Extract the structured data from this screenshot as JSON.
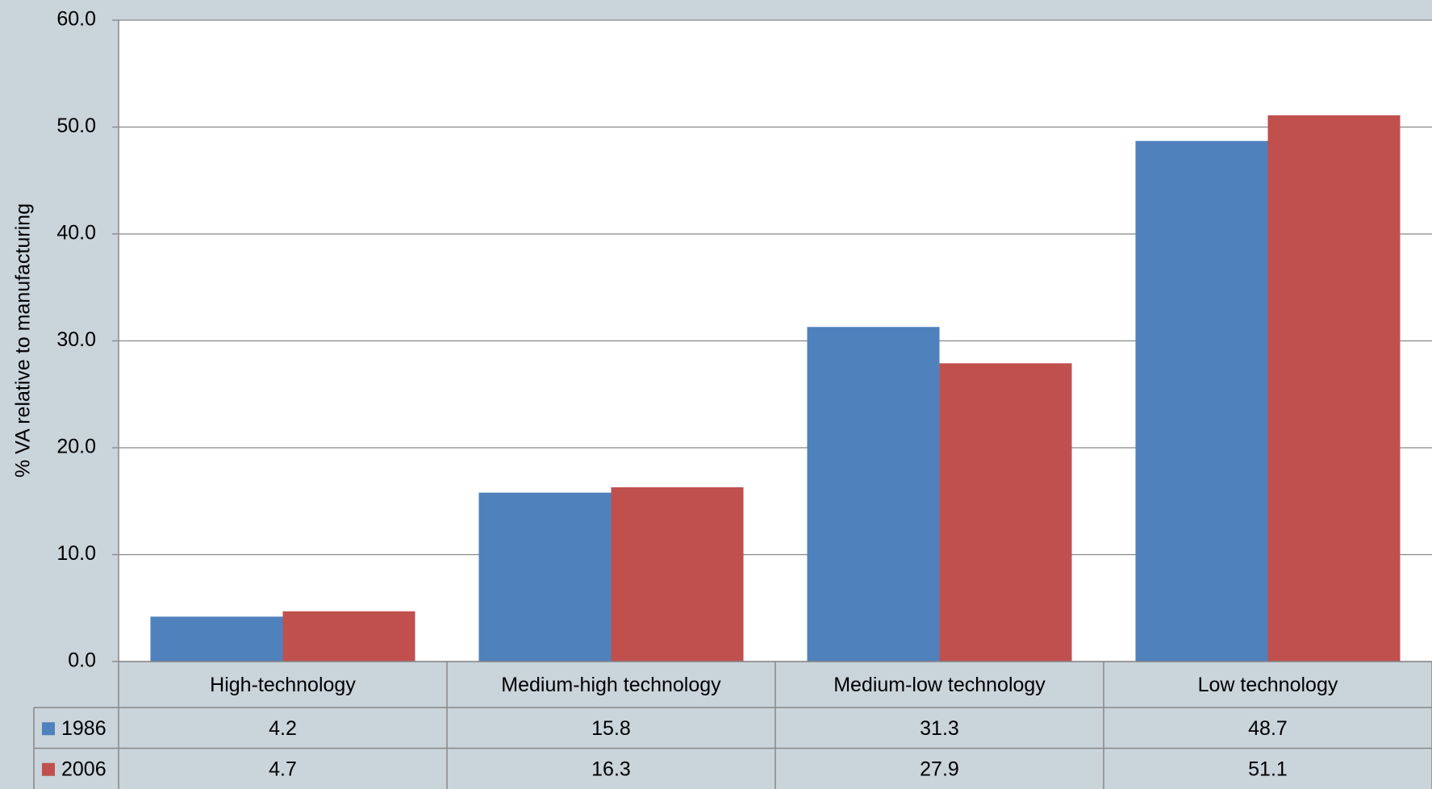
{
  "chart_data": {
    "type": "bar",
    "y_axis_label": "% VA relative to manufacturing",
    "categories": [
      "High-technology",
      "Medium-high technology",
      "Medium-low technology",
      "Low technology"
    ],
    "series": [
      {
        "name": "1986",
        "color": "#4f81bd",
        "values": [
          4.2,
          15.8,
          31.3,
          48.7
        ]
      },
      {
        "name": "2006",
        "color": "#c0504d",
        "values": [
          4.7,
          16.3,
          27.9,
          51.1
        ]
      }
    ],
    "ylim": [
      0,
      60
    ],
    "yticks": [
      {
        "value": 0,
        "label": "0.0"
      },
      {
        "value": 10,
        "label": "10.0"
      },
      {
        "value": 20,
        "label": "20.0"
      },
      {
        "value": 30,
        "label": "30.0"
      },
      {
        "value": 40,
        "label": "40.0"
      },
      {
        "value": 50,
        "label": "50.0"
      },
      {
        "value": 60,
        "label": "60.0"
      }
    ],
    "grid": true,
    "data_table": true
  }
}
